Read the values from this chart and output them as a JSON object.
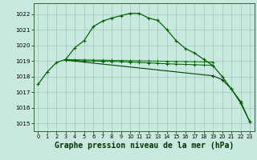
{
  "bg_color": "#c8e8e0",
  "grid_color": "#a0c8b8",
  "line_color_main": "#006600",
  "line_color_flat1": "#005500",
  "line_color_flat2": "#007700",
  "line_color_decline": "#004400",
  "xlabel": "Graphe pression niveau de la mer (hPa)",
  "xlabel_fontsize": 7.0,
  "ylim": [
    1014.5,
    1022.7
  ],
  "xlim": [
    -0.5,
    23.5
  ],
  "yticks": [
    1015,
    1016,
    1017,
    1018,
    1019,
    1020,
    1021,
    1022
  ],
  "xticks": [
    0,
    1,
    2,
    3,
    4,
    5,
    6,
    7,
    8,
    9,
    10,
    11,
    12,
    13,
    14,
    15,
    16,
    17,
    18,
    19,
    20,
    21,
    22,
    23
  ],
  "series1_x": [
    0,
    1,
    2,
    3,
    4,
    5,
    6,
    7,
    8,
    9,
    10,
    11,
    12,
    13,
    14,
    15,
    16,
    17,
    18,
    19,
    20,
    21,
    22,
    23
  ],
  "series1_y": [
    1017.5,
    1018.3,
    1018.9,
    1019.1,
    1019.85,
    1020.3,
    1021.2,
    1021.55,
    1021.75,
    1021.9,
    1022.05,
    1022.05,
    1021.75,
    1021.6,
    1021.0,
    1020.3,
    1019.8,
    1019.5,
    1019.1,
    1018.7,
    1018.0,
    1017.2,
    1016.4,
    1015.1
  ],
  "series2_x": [
    3,
    4,
    5,
    6,
    7,
    8,
    9,
    10,
    11,
    12,
    13,
    14,
    15,
    16,
    17,
    18,
    19
  ],
  "series2_y": [
    1019.05,
    1019.05,
    1019.0,
    1019.0,
    1018.98,
    1018.97,
    1018.95,
    1018.93,
    1018.9,
    1018.88,
    1018.85,
    1018.82,
    1018.8,
    1018.78,
    1018.76,
    1018.74,
    1018.72
  ],
  "series3_x": [
    3,
    4,
    5,
    6,
    7,
    8,
    9,
    10,
    11,
    12,
    13,
    14,
    15,
    16,
    17,
    18,
    19
  ],
  "series3_y": [
    1019.1,
    1019.08,
    1019.07,
    1019.06,
    1019.05,
    1019.04,
    1019.03,
    1019.02,
    1019.01,
    1019.0,
    1018.99,
    1018.98,
    1018.97,
    1018.96,
    1018.95,
    1018.94,
    1018.93
  ],
  "series4_x": [
    3,
    19,
    20,
    21,
    22,
    23
  ],
  "series4_y": [
    1019.05,
    1018.05,
    1017.8,
    1017.2,
    1016.3,
    1015.1
  ],
  "marker": "+"
}
